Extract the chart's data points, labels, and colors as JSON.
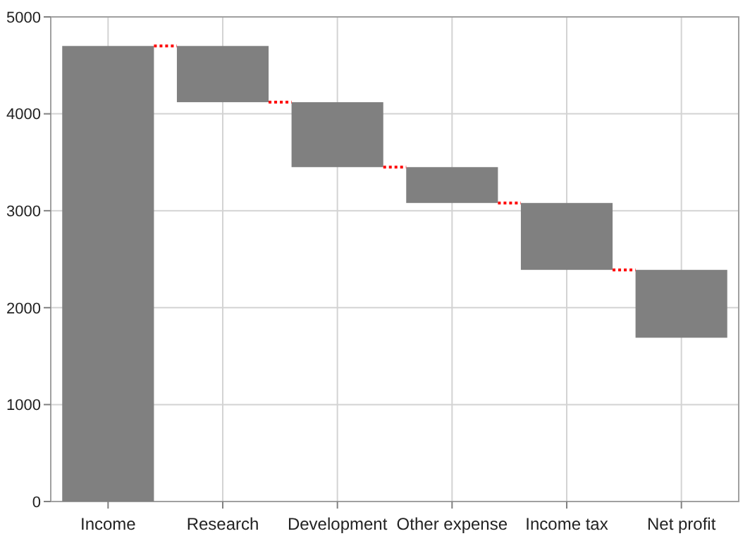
{
  "chart_data": {
    "type": "bar",
    "categories": [
      "Income",
      "Research",
      "Development",
      "Other expense",
      "Income tax",
      "Net profit"
    ],
    "values": [
      4700,
      -580,
      -670,
      -370,
      -690,
      -700
    ],
    "base": [
      0,
      4700,
      4120,
      3450,
      3080,
      2390
    ],
    "color": "#808080",
    "ylim": [
      0,
      5000
    ],
    "yticks": [
      0,
      1000,
      2000,
      3000,
      4000,
      5000
    ],
    "grid": true
  }
}
